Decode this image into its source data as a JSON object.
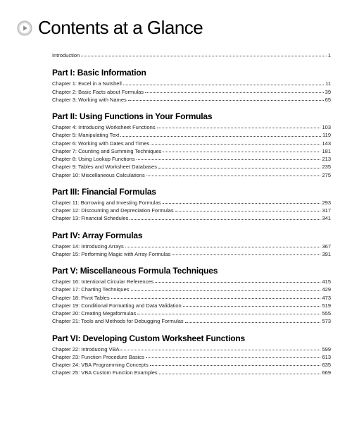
{
  "title": "Contents at a Glance",
  "intro": {
    "label": "Introduction",
    "page": "1"
  },
  "parts": [
    {
      "title": "Part I: Basic Information",
      "chapters": [
        {
          "label": "Chapter 1: Excel in a Nutshell",
          "page": "11"
        },
        {
          "label": "Chapter 2: Basic Facts about Formulas",
          "page": "39"
        },
        {
          "label": "Chapter 3: Working with Names",
          "page": "65"
        }
      ]
    },
    {
      "title": "Part II: Using Functions in Your Formulas",
      "chapters": [
        {
          "label": "Chapter 4: Introducing Worksheet Functions",
          "page": "103"
        },
        {
          "label": "Chapter 5: Manipulating Text",
          "page": "119"
        },
        {
          "label": "Chapter 6: Working with Dates and Times",
          "page": "143"
        },
        {
          "label": "Chapter 7: Counting and Summing Techniques",
          "page": "181"
        },
        {
          "label": "Chapter 8: Using Lookup Functions",
          "page": "213"
        },
        {
          "label": "Chapter 9: Tables and Worksheet Databases",
          "page": "235"
        },
        {
          "label": "Chapter 10: Miscellaneous Calculations",
          "page": "275"
        }
      ]
    },
    {
      "title": "Part III: Financial Formulas",
      "chapters": [
        {
          "label": "Chapter 11: Borrowing and Investing Formulas",
          "page": "293"
        },
        {
          "label": "Chapter 12: Discounting and Depreciation Formulas",
          "page": "317"
        },
        {
          "label": "Chapter 13: Financial Schedules",
          "page": "341"
        }
      ]
    },
    {
      "title": "Part IV: Array Formulas",
      "chapters": [
        {
          "label": "Chapter 14: Introducing Arrays",
          "page": "367"
        },
        {
          "label": "Chapter 15: Performing Magic with Array Formulas",
          "page": "391"
        }
      ]
    },
    {
      "title": "Part V: Miscellaneous Formula Techniques",
      "chapters": [
        {
          "label": "Chapter 16: Intentional Circular References",
          "page": "415"
        },
        {
          "label": "Chapter 17: Charting Techniques",
          "page": "429"
        },
        {
          "label": "Chapter 18: Pivot Tables",
          "page": "473"
        },
        {
          "label": "Chapter 19: Conditional Formatting and Data Validation",
          "page": "519"
        },
        {
          "label": "Chapter 20: Creating Megaformulas",
          "page": "555"
        },
        {
          "label": "Chapter 21: Tools and Methods for Debugging Formulas",
          "page": "573"
        }
      ]
    },
    {
      "title": "Part VI: Developing Custom Worksheet Functions",
      "chapters": [
        {
          "label": "Chapter 22: Introducing VBA",
          "page": "599"
        },
        {
          "label": "Chapter 23: Function Procedure Basics",
          "page": "613"
        },
        {
          "label": "Chapter 24: VBA Programming Concepts",
          "page": "635"
        },
        {
          "label": "Chapter 25: VBA Custom Function Examples",
          "page": "669"
        }
      ]
    }
  ],
  "icon_colors": {
    "ring": "#b8b8b8",
    "glow": "#e8e8e8",
    "tri": "#9a9a9a"
  }
}
